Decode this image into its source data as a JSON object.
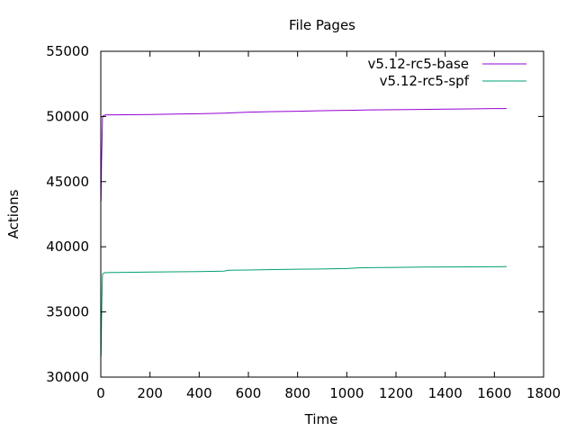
{
  "chart_data": {
    "type": "line",
    "title": "File Pages",
    "xlabel": "Time",
    "ylabel": "Actions",
    "xlim": [
      0,
      1800
    ],
    "ylim": [
      30000,
      55000
    ],
    "xticks": [
      0,
      200,
      400,
      600,
      800,
      1000,
      1200,
      1400,
      1600,
      1800
    ],
    "yticks": [
      30000,
      35000,
      40000,
      45000,
      50000,
      55000
    ],
    "grid": false,
    "legend_position": "top-right",
    "series": [
      {
        "name": "v5.12-rc5-base",
        "color": "#9400d3",
        "x": [
          0,
          1,
          3,
          5,
          7,
          10,
          15,
          20,
          100,
          200,
          300,
          400,
          500,
          600,
          700,
          800,
          900,
          1000,
          1100,
          1200,
          1300,
          1400,
          1500,
          1600,
          1650
        ],
        "y": [
          45800,
          43500,
          46500,
          48200,
          49900,
          50050,
          50100,
          50120,
          50130,
          50150,
          50180,
          50210,
          50250,
          50330,
          50370,
          50400,
          50440,
          50470,
          50500,
          50520,
          50540,
          50560,
          50580,
          50610,
          50610
        ]
      },
      {
        "name": "v5.12-rc5-spf",
        "color": "#009e73",
        "x": [
          0,
          1,
          3,
          5,
          7,
          10,
          15,
          20,
          100,
          200,
          300,
          400,
          500,
          520,
          600,
          700,
          800,
          900,
          1000,
          1050,
          1100,
          1200,
          1300,
          1400,
          1500,
          1600,
          1650
        ],
        "y": [
          35600,
          31600,
          34200,
          36500,
          37900,
          37950,
          38000,
          38020,
          38040,
          38060,
          38080,
          38100,
          38130,
          38200,
          38220,
          38250,
          38280,
          38300,
          38330,
          38380,
          38400,
          38420,
          38440,
          38450,
          38460,
          38470,
          38480
        ]
      }
    ]
  }
}
